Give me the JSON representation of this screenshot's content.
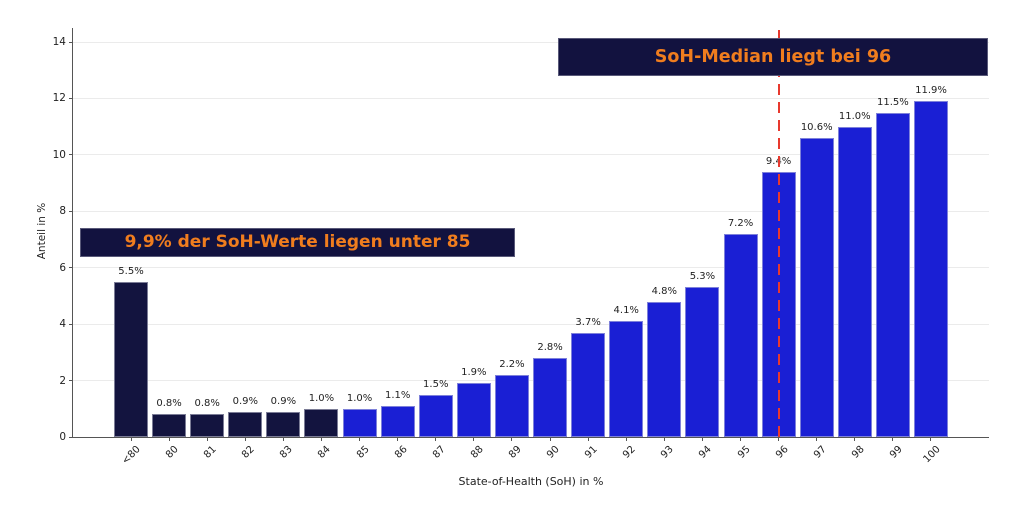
{
  "chart_data": {
    "type": "bar",
    "title": "",
    "categories": [
      "<80",
      "80",
      "81",
      "82",
      "83",
      "84",
      "85",
      "86",
      "87",
      "88",
      "89",
      "90",
      "91",
      "92",
      "93",
      "94",
      "95",
      "96",
      "97",
      "98",
      "99",
      "100"
    ],
    "values": [
      5.5,
      0.8,
      0.8,
      0.9,
      0.9,
      1.0,
      1.0,
      1.1,
      1.5,
      1.9,
      2.2,
      2.8,
      3.7,
      4.1,
      4.8,
      5.3,
      7.2,
      9.4,
      10.6,
      11.0,
      11.5,
      11.9
    ],
    "value_labels": [
      "5.5%",
      "0.8%",
      "0.8%",
      "0.9%",
      "0.9%",
      "1.0%",
      "1.0%",
      "1.1%",
      "1.5%",
      "1.9%",
      "2.2%",
      "2.8%",
      "3.7%",
      "4.1%",
      "4.8%",
      "5.3%",
      "7.2%",
      "9.4%",
      "10.6%",
      "11.0%",
      "11.5%",
      "11.9%"
    ],
    "bar_colors": [
      "#13143f",
      "#13143f",
      "#13143f",
      "#13143f",
      "#13143f",
      "#13143f",
      "#1a1fd4",
      "#1a1fd4",
      "#1a1fd4",
      "#1a1fd4",
      "#1a1fd4",
      "#1a1fd4",
      "#1a1fd4",
      "#1a1fd4",
      "#1a1fd4",
      "#1a1fd4",
      "#1a1fd4",
      "#1a1fd4",
      "#1a1fd4",
      "#1a1fd4",
      "#1a1fd4",
      "#1a1fd4"
    ],
    "xlabel": "State-of-Health (SoH) in %",
    "ylabel": "Anteil in %",
    "ylim": [
      0,
      14.5
    ],
    "yticks": [
      0,
      2,
      4,
      6,
      8,
      10,
      12,
      14
    ],
    "ytick_labels": [
      "0",
      "2",
      "4",
      "6",
      "8",
      "10",
      "12",
      "14"
    ],
    "grid": true,
    "legend_position": "none",
    "annotations": [
      {
        "text": "9,9% der SoH-Werte liegen unter 85",
        "text_color": "#f07d1e",
        "bg_color": "#12123f"
      },
      {
        "text": "SoH-Median liegt bei 96",
        "text_color": "#f07d1e",
        "bg_color": "#12123f"
      }
    ],
    "median_line": {
      "at_category": "96",
      "color": "#e8392e",
      "style": "dashed"
    }
  },
  "colors": {
    "bar_navy": "#13143f",
    "bar_blue": "#1a1fd4",
    "annotation_orange": "#f07d1e",
    "annotation_bg": "#12123f",
    "median_red": "#e8392e",
    "grid": "#ebebeb",
    "axis": "#555555"
  }
}
